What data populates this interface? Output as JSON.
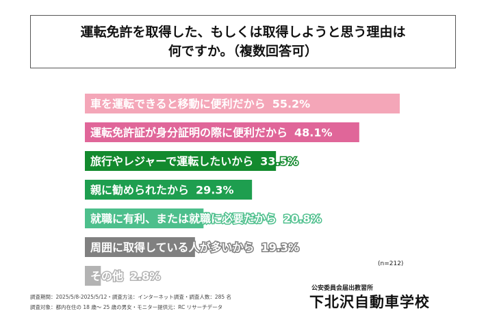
{
  "title": "運転免許を取得した、もしくは取得しようと思う理由は\n何ですか。（複数回答可）",
  "sample_note": "(n=212)",
  "footer": {
    "line1": "調査期間：2025/5/8-2025/5/12・調査方法：インターネット調査・調査人数：285 名",
    "line2": "調査対象：都内在住の 18 歳～ 25 歳の男女・モニター提供元：RC リサーチデータ"
  },
  "school": {
    "sub": "公安委員会届出教習所",
    "name": "下北沢自動車学校"
  },
  "chart_data": {
    "type": "bar",
    "orientation": "horizontal",
    "categories": [
      "車を運転できると移動に便利だから",
      "運転免許証が身分証明の際に便利だから",
      "旅行やレジャーで運転したいから",
      "親に勧められたから",
      "就職に有利、または就職に必要だから",
      "周囲に取得している人が多いから",
      "その他"
    ],
    "values": [
      55.2,
      48.1,
      33.5,
      29.3,
      20.8,
      19.3,
      2.8
    ],
    "value_labels": [
      "55.2%",
      "48.1%",
      "33.5%",
      "29.3%",
      "20.8%",
      "19.3%",
      "2.8%"
    ],
    "colors": [
      "#f4a6b8",
      "#e06699",
      "#138a2e",
      "#1e9e4f",
      "#4dbf8c",
      "#808080",
      "#b3b3b3"
    ],
    "label_outline_colors": [
      "#f4a6b8",
      "#e06699",
      "#138a2e",
      "#1e9e4f",
      "#4dbf8c",
      "#808080",
      "#b3b3b3"
    ]
  }
}
